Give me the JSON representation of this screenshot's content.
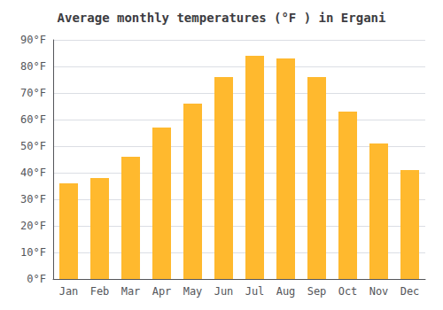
{
  "chart_data": {
    "type": "bar",
    "title": "Average monthly temperatures (°F ) in Ergani",
    "categories": [
      "Jan",
      "Feb",
      "Mar",
      "Apr",
      "May",
      "Jun",
      "Jul",
      "Aug",
      "Sep",
      "Oct",
      "Nov",
      "Dec"
    ],
    "values": [
      36,
      38,
      46,
      57,
      66,
      76,
      84,
      83,
      76,
      63,
      51,
      41
    ],
    "color": "#FFB92E",
    "ylim": [
      0,
      90
    ],
    "yticks": [
      {
        "value": 0,
        "label": "0°F"
      },
      {
        "value": 10,
        "label": "10°F"
      },
      {
        "value": 20,
        "label": "20°F"
      },
      {
        "value": 30,
        "label": "30°F"
      },
      {
        "value": 40,
        "label": "40°F"
      },
      {
        "value": 50,
        "label": "50°F"
      },
      {
        "value": 60,
        "label": "60°F"
      },
      {
        "value": 70,
        "label": "70°F"
      },
      {
        "value": 80,
        "label": "80°F"
      },
      {
        "value": 90,
        "label": "90°F"
      }
    ],
    "grid": true
  }
}
